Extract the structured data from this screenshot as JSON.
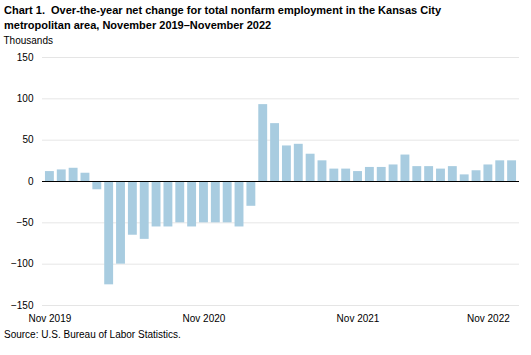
{
  "chart_data": {
    "type": "bar",
    "title": "Chart 1.  Over-the-year net change for total nonfarm employment in the Kansas City\nmetropolitan area, November 2019–November 2022",
    "ylabel": "Thousands",
    "caption": "Source: U.S. Bureau of Labor Statistics.",
    "categories": [
      "Nov 2019",
      null,
      null,
      null,
      null,
      null,
      null,
      null,
      null,
      null,
      null,
      null,
      null,
      "Nov 2020",
      null,
      null,
      null,
      null,
      null,
      null,
      null,
      null,
      null,
      null,
      null,
      null,
      "Nov 2021",
      null,
      null,
      null,
      null,
      null,
      null,
      null,
      null,
      null,
      null,
      "Nov 2022",
      null,
      null
    ],
    "values": [
      12,
      14,
      16,
      10,
      -10,
      -125,
      -100,
      -65,
      -70,
      -55,
      -55,
      -50,
      -55,
      -50,
      -50,
      -50,
      -55,
      -30,
      93,
      70,
      43,
      45,
      33,
      25,
      15,
      15,
      12,
      17,
      17,
      20,
      32,
      18,
      18,
      15,
      18,
      8,
      13,
      20,
      25,
      25
    ],
    "color": "#a8cce0",
    "ylim": [
      -150,
      150
    ],
    "yticks": [
      -150,
      -100,
      -50,
      0,
      50,
      100,
      150
    ],
    "grid": true
  }
}
